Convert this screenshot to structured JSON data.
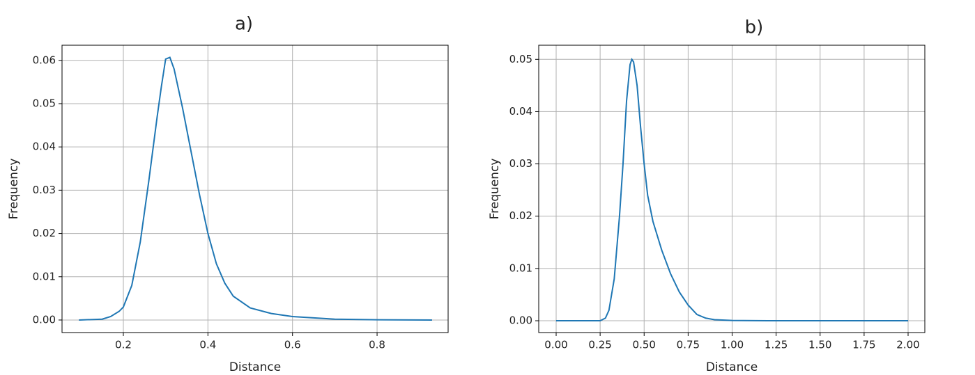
{
  "chart_data": [
    {
      "type": "line",
      "title": "a)",
      "xlabel": "Distance",
      "ylabel": "Frequency",
      "grid": true,
      "x": [
        0.095,
        0.15,
        0.17,
        0.19,
        0.2,
        0.22,
        0.24,
        0.26,
        0.28,
        0.29,
        0.3,
        0.31,
        0.32,
        0.34,
        0.36,
        0.38,
        0.4,
        0.42,
        0.44,
        0.46,
        0.5,
        0.55,
        0.6,
        0.7,
        0.8,
        0.93
      ],
      "series": [
        {
          "color": "#1f77b4",
          "values": [
            0,
            0.0002,
            0.0008,
            0.002,
            0.003,
            0.008,
            0.018,
            0.032,
            0.047,
            0.054,
            0.0603,
            0.0607,
            0.058,
            0.049,
            0.039,
            0.029,
            0.02,
            0.013,
            0.0085,
            0.0055,
            0.0028,
            0.0015,
            0.0008,
            0.0002,
            5e-05,
            0
          ]
        }
      ],
      "xlim": [
        0.055,
        0.968
      ],
      "ylim": [
        -0.0029,
        0.0635
      ],
      "xticks": [
        0.2,
        0.4,
        0.6,
        0.8
      ],
      "yticks": [
        {
          "value": 0,
          "label": "0.00"
        },
        {
          "value": 0.01,
          "label": "0.01"
        },
        {
          "value": 0.02,
          "label": "0.02"
        },
        {
          "value": 0.03,
          "label": "0.03"
        },
        {
          "value": 0.04,
          "label": "0.04"
        },
        {
          "value": 0.05,
          "label": "0.05"
        },
        {
          "value": 0.06,
          "label": "0.06"
        }
      ]
    },
    {
      "type": "line",
      "title": "b)",
      "xlabel": "Distance",
      "ylabel": "Frequency",
      "grid": true,
      "x": [
        0,
        0.25,
        0.28,
        0.3,
        0.33,
        0.36,
        0.38,
        0.4,
        0.42,
        0.43,
        0.44,
        0.46,
        0.48,
        0.5,
        0.52,
        0.55,
        0.6,
        0.65,
        0.7,
        0.75,
        0.8,
        0.85,
        0.9,
        1.0,
        1.2,
        2.0
      ],
      "series": [
        {
          "color": "#1f77b4",
          "values": [
            0,
            0,
            0.0005,
            0.002,
            0.008,
            0.02,
            0.03,
            0.042,
            0.049,
            0.05,
            0.0495,
            0.045,
            0.037,
            0.03,
            0.024,
            0.019,
            0.0135,
            0.009,
            0.0055,
            0.003,
            0.0012,
            0.0005,
            0.0002,
            5e-05,
            0,
            0
          ]
        }
      ],
      "xlim": [
        -0.099,
        2.095
      ],
      "ylim": [
        -0.00226,
        0.0527
      ],
      "xticks": [
        {
          "value": 0,
          "label": "0.00"
        },
        {
          "value": 0.25,
          "label": "0.25"
        },
        {
          "value": 0.5,
          "label": "0.50"
        },
        {
          "value": 0.75,
          "label": "0.75"
        },
        {
          "value": 1,
          "label": "1.00"
        },
        {
          "value": 1.25,
          "label": "1.25"
        },
        {
          "value": 1.5,
          "label": "1.50"
        },
        {
          "value": 1.75,
          "label": "1.75"
        },
        {
          "value": 2,
          "label": "2.00"
        }
      ],
      "yticks": [
        {
          "value": 0,
          "label": "0.00"
        },
        {
          "value": 0.01,
          "label": "0.01"
        },
        {
          "value": 0.02,
          "label": "0.02"
        },
        {
          "value": 0.03,
          "label": "0.03"
        },
        {
          "value": 0.04,
          "label": "0.04"
        },
        {
          "value": 0.05,
          "label": "0.05"
        }
      ]
    }
  ]
}
